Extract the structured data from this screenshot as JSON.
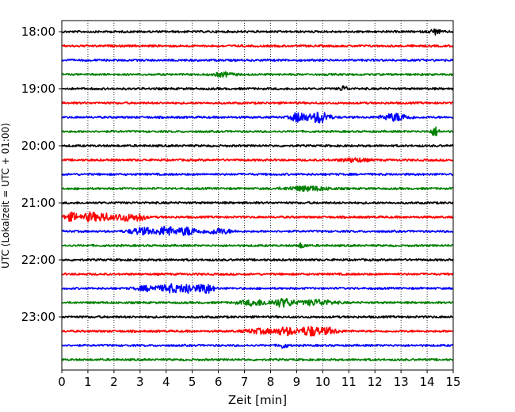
{
  "chart_data": {
    "type": "line",
    "title": "",
    "xlabel": "Zeit  [min]",
    "ylabel": "UTC (Lokalzeit = UTC + 01:00)",
    "xlim": [
      0,
      15
    ],
    "x_ticks": [
      "0",
      "1",
      "2",
      "3",
      "4",
      "5",
      "6",
      "7",
      "8",
      "9",
      "10",
      "11",
      "12",
      "13",
      "14",
      "15"
    ],
    "y_ticks": [
      "18:00",
      "19:00",
      "20:00",
      "21:00",
      "22:00",
      "23:00"
    ],
    "grid": "vertical dotted",
    "traces": [
      {
        "start": "18:00",
        "color": "#000000",
        "bursts": [
          {
            "x": 14.3,
            "amp": 0.35,
            "w": 0.2
          }
        ]
      },
      {
        "start": "18:15",
        "color": "#ff0000",
        "bursts": []
      },
      {
        "start": "18:30",
        "color": "#0000ff",
        "bursts": []
      },
      {
        "start": "18:45",
        "color": "#008000",
        "bursts": [
          {
            "x": 6.2,
            "amp": 0.25,
            "w": 0.4
          }
        ]
      },
      {
        "start": "19:00",
        "color": "#000000",
        "bursts": [
          {
            "x": 10.8,
            "amp": 0.35,
            "w": 0.15
          }
        ]
      },
      {
        "start": "19:15",
        "color": "#ff0000",
        "bursts": []
      },
      {
        "start": "19:30",
        "color": "#0000ff",
        "bursts": [
          {
            "x": 9.1,
            "amp": 0.7,
            "w": 0.3
          },
          {
            "x": 9.9,
            "amp": 0.8,
            "w": 0.35
          },
          {
            "x": 12.8,
            "amp": 0.5,
            "w": 0.5
          }
        ]
      },
      {
        "start": "19:45",
        "color": "#008000",
        "bursts": [
          {
            "x": 14.3,
            "amp": 0.6,
            "w": 0.15
          }
        ]
      },
      {
        "start": "20:00",
        "color": "#000000",
        "bursts": []
      },
      {
        "start": "20:15",
        "color": "#ff0000",
        "bursts": [
          {
            "x": 11.2,
            "amp": 0.25,
            "w": 0.5
          }
        ]
      },
      {
        "start": "20:30",
        "color": "#0000ff",
        "bursts": []
      },
      {
        "start": "20:45",
        "color": "#008000",
        "bursts": [
          {
            "x": 9.4,
            "amp": 0.3,
            "w": 0.8
          }
        ]
      },
      {
        "start": "21:00",
        "color": "#000000",
        "bursts": []
      },
      {
        "start": "21:15",
        "color": "#ff0000",
        "bursts": [
          {
            "x": 0.4,
            "amp": 0.55,
            "w": 0.3
          },
          {
            "x": 1.1,
            "amp": 0.6,
            "w": 0.25
          },
          {
            "x": 1.6,
            "amp": 0.55,
            "w": 0.25
          },
          {
            "x": 2.4,
            "amp": 0.5,
            "w": 0.4
          },
          {
            "x": 3.0,
            "amp": 0.45,
            "w": 0.2
          }
        ]
      },
      {
        "start": "21:30",
        "color": "#0000ff",
        "bursts": [
          {
            "x": 3.1,
            "amp": 0.45,
            "w": 0.5
          },
          {
            "x": 4.0,
            "amp": 0.65,
            "w": 0.3
          },
          {
            "x": 4.8,
            "amp": 0.55,
            "w": 0.4
          },
          {
            "x": 6.0,
            "amp": 0.35,
            "w": 0.5
          }
        ]
      },
      {
        "start": "21:45",
        "color": "#008000",
        "bursts": [
          {
            "x": 9.2,
            "amp": 0.3,
            "w": 0.15
          }
        ]
      },
      {
        "start": "22:00",
        "color": "#000000",
        "bursts": []
      },
      {
        "start": "22:15",
        "color": "#ff0000",
        "bursts": []
      },
      {
        "start": "22:30",
        "color": "#0000ff",
        "bursts": [
          {
            "x": 3.4,
            "amp": 0.35,
            "w": 0.5
          },
          {
            "x": 4.2,
            "amp": 0.55,
            "w": 0.3
          },
          {
            "x": 4.8,
            "amp": 0.75,
            "w": 0.25
          },
          {
            "x": 5.5,
            "amp": 0.7,
            "w": 0.3
          }
        ]
      },
      {
        "start": "22:45",
        "color": "#008000",
        "bursts": [
          {
            "x": 7.4,
            "amp": 0.35,
            "w": 0.6
          },
          {
            "x": 8.5,
            "amp": 0.55,
            "w": 0.4
          },
          {
            "x": 9.8,
            "amp": 0.4,
            "w": 0.6
          }
        ]
      },
      {
        "start": "23:00",
        "color": "#000000",
        "bursts": []
      },
      {
        "start": "23:15",
        "color": "#ff0000",
        "bursts": [
          {
            "x": 7.6,
            "amp": 0.3,
            "w": 0.6
          },
          {
            "x": 8.6,
            "amp": 0.5,
            "w": 0.4
          },
          {
            "x": 9.5,
            "amp": 0.65,
            "w": 0.35
          },
          {
            "x": 10.2,
            "amp": 0.4,
            "w": 0.4
          }
        ]
      },
      {
        "start": "23:30",
        "color": "#0000ff",
        "bursts": [
          {
            "x": 8.5,
            "amp": 0.35,
            "w": 0.15
          }
        ]
      },
      {
        "start": "23:45",
        "color": "#008000",
        "bursts": []
      }
    ]
  }
}
